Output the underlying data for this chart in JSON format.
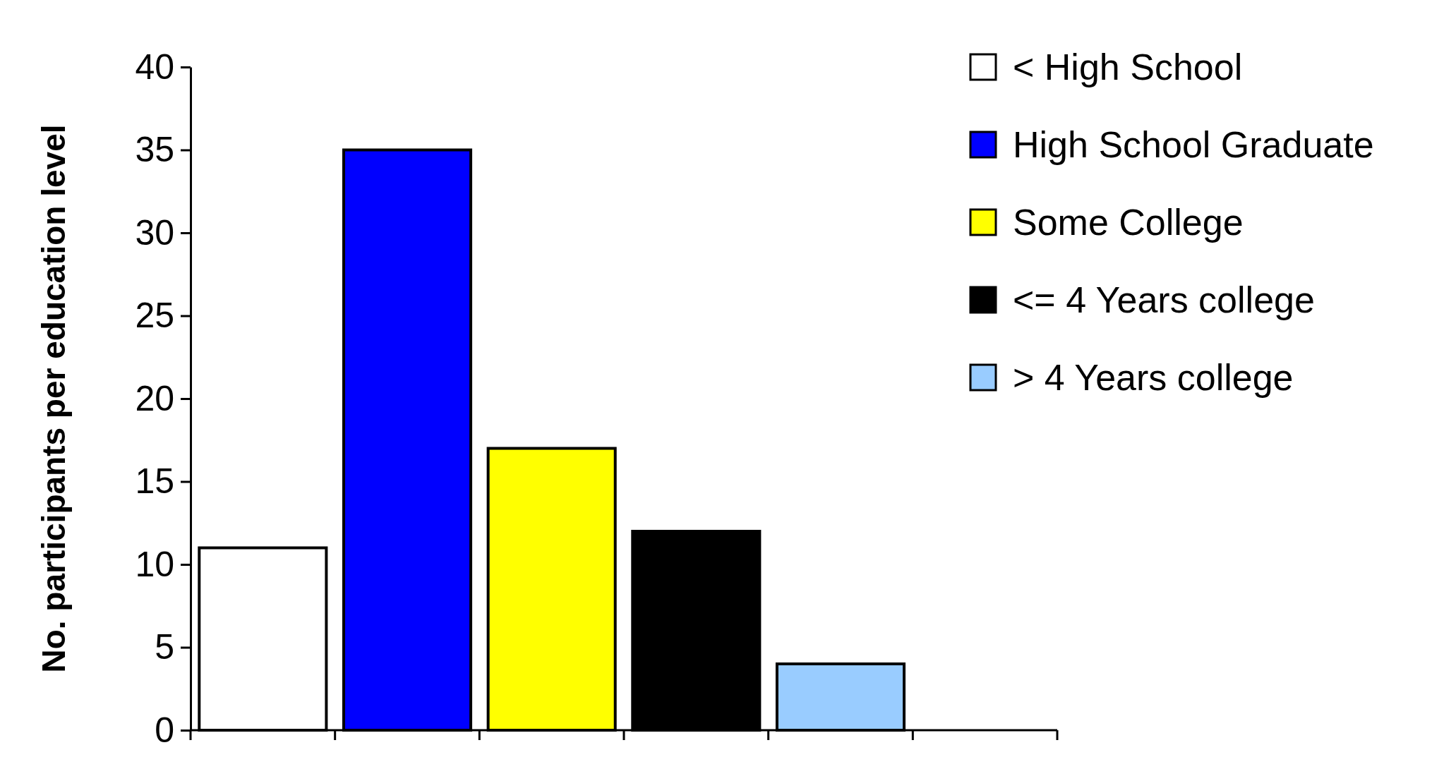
{
  "chart_data": {
    "type": "bar",
    "ylabel": "No. participants per education level",
    "categories": [
      null,
      null,
      null,
      null,
      null,
      null
    ],
    "series": [
      {
        "name": "< High School",
        "color": "#ffffff",
        "values": [
          11,
          null,
          null,
          null,
          null,
          null
        ]
      },
      {
        "name": "High School Graduate",
        "color": "#0000ff",
        "values": [
          null,
          35,
          null,
          null,
          null,
          null
        ]
      },
      {
        "name": "Some College",
        "color": "#ffff00",
        "values": [
          null,
          null,
          17,
          null,
          null,
          null
        ]
      },
      {
        "name": "<= 4 Years college",
        "color": "#000000",
        "values": [
          null,
          null,
          null,
          12,
          null,
          null
        ]
      },
      {
        "name": "> 4 Years college",
        "color": "#99ccff",
        "values": [
          null,
          null,
          null,
          null,
          4,
          null
        ]
      }
    ],
    "ylim": [
      0,
      40
    ],
    "yticks": [
      0,
      5,
      10,
      15,
      20,
      25,
      30,
      35,
      40
    ],
    "grid": false,
    "legend": "top right"
  }
}
